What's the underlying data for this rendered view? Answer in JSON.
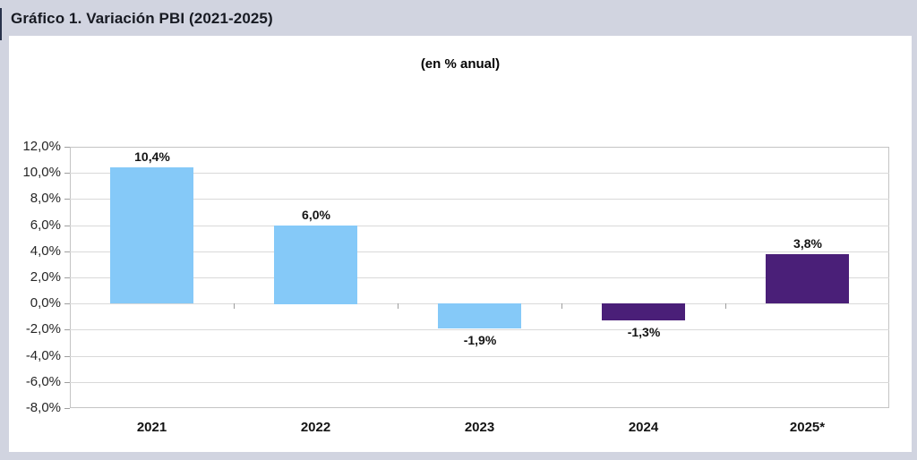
{
  "chart_data": {
    "type": "bar",
    "title": "Gráfico 1. Variación PBI (2021-2025)",
    "subtitle": "(en % anual)",
    "categories": [
      "2021",
      "2022",
      "2023",
      "2024",
      "2025*"
    ],
    "values": [
      10.4,
      6.0,
      -1.9,
      -1.3,
      3.8
    ],
    "value_labels": [
      "10,4%",
      "6,0%",
      "-1,9%",
      "-1,3%",
      "3,8%"
    ],
    "series_colors": [
      "#85C9F8",
      "#85C9F8",
      "#85C9F8",
      "#4A1F78",
      "#4A1F78"
    ],
    "xlabel": "",
    "ylabel": "",
    "ylim": [
      -8,
      12
    ],
    "ytick_step": 2,
    "ytick_labels": [
      "12,0%",
      "10,0%",
      "8,0%",
      "6,0%",
      "4,0%",
      "2,0%",
      "0,0%",
      "-2,0%",
      "-4,0%",
      "-6,0%",
      "-8,0%"
    ],
    "grid": true,
    "legend": false
  },
  "colors": {
    "page_bg": "#D1D4E0",
    "panel_bg": "#FFFFFF",
    "bar_blue": "#85C9F8",
    "bar_purple": "#4A1F78",
    "gridline": "#D9D9D9",
    "plot_border": "#C4C4C4",
    "accent_border": "#28324A"
  }
}
